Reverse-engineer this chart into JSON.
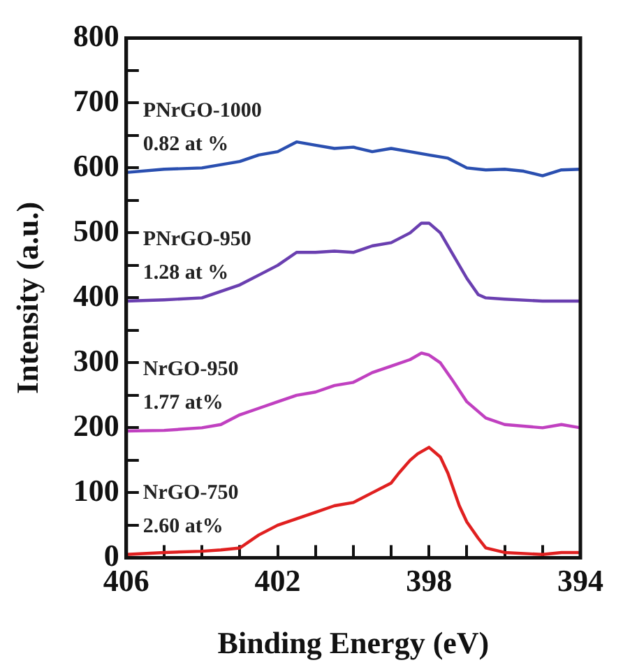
{
  "chart_data": {
    "type": "line",
    "xlabel": "Binding Energy (eV)",
    "ylabel": "Intensity (a.u.)",
    "xlim": [
      406,
      394
    ],
    "xticks": [
      406,
      {
        "value": 405,
        "label": null
      },
      {
        "value": 404,
        "label": null
      },
      {
        "value": 403,
        "label": null
      },
      402,
      {
        "value": 401,
        "label": null
      },
      {
        "value": 400,
        "label": null
      },
      {
        "value": 399,
        "label": null
      },
      398,
      {
        "value": 397,
        "label": null
      },
      {
        "value": 396,
        "label": null
      },
      {
        "value": 395,
        "label": null
      },
      394
    ],
    "ylim": [
      0,
      800
    ],
    "yticks": [
      0,
      {
        "value": 50,
        "label": null
      },
      100,
      {
        "value": 150,
        "label": null
      },
      200,
      {
        "value": 250,
        "label": null
      },
      300,
      {
        "value": 350,
        "label": null
      },
      400,
      {
        "value": 450,
        "label": null
      },
      500,
      {
        "value": 550,
        "label": null
      },
      600,
      {
        "value": 650,
        "label": null
      },
      700,
      {
        "value": 750,
        "label": null
      },
      800
    ],
    "grid": false,
    "legend": false,
    "marker": "none",
    "line_style": "solid",
    "annotations": [
      "0.82 at %",
      "1.28 at %",
      "1.77 at%",
      "2.60 at%"
    ],
    "series": [
      {
        "name": "PNrGO-1000",
        "color": "#2a4fb0",
        "x": [
          406,
          405,
          404,
          403,
          402.5,
          402,
          401.5,
          401,
          400.5,
          400,
          399.5,
          399,
          398.5,
          398,
          397.5,
          397,
          396.5,
          396,
          395.5,
          395,
          394.5,
          394
        ],
        "values": [
          593,
          598,
          600,
          610,
          620,
          625,
          640,
          635,
          630,
          632,
          625,
          630,
          625,
          620,
          615,
          600,
          597,
          598,
          595,
          588,
          597,
          598
        ]
      },
      {
        "name": "PNrGO-950",
        "color": "#6a3fb0",
        "x": [
          406,
          405,
          404,
          403.5,
          403,
          402.5,
          402,
          401.5,
          401,
          400.5,
          400,
          399.5,
          399,
          398.5,
          398.2,
          398,
          397.7,
          397.4,
          397,
          396.7,
          396.5,
          396,
          395,
          394
        ],
        "values": [
          395,
          397,
          400,
          410,
          420,
          435,
          450,
          470,
          470,
          472,
          470,
          480,
          485,
          500,
          515,
          515,
          500,
          470,
          430,
          405,
          400,
          398,
          395,
          395
        ]
      },
      {
        "name": "NrGO-950",
        "color": "#c040c0",
        "x": [
          406,
          405,
          404,
          403.5,
          403,
          402.5,
          402,
          401.5,
          401,
          400.5,
          400,
          399.5,
          399,
          398.5,
          398.2,
          398,
          397.7,
          397.4,
          397,
          396.5,
          396,
          395,
          394.5,
          394
        ],
        "values": [
          195,
          196,
          200,
          205,
          220,
          230,
          240,
          250,
          255,
          265,
          270,
          285,
          295,
          305,
          315,
          312,
          300,
          275,
          240,
          215,
          205,
          200,
          205,
          200
        ]
      },
      {
        "name": "NrGO-750",
        "color": "#e02020",
        "x": [
          406,
          405,
          404,
          403.5,
          403,
          402.5,
          402,
          401.5,
          401,
          400.5,
          400,
          399.5,
          399,
          398.8,
          398.5,
          398.3,
          398,
          397.7,
          397.5,
          397.2,
          397,
          396.7,
          396.5,
          396,
          395,
          394.5,
          394
        ],
        "values": [
          5,
          8,
          10,
          12,
          15,
          35,
          50,
          60,
          70,
          80,
          85,
          100,
          115,
          130,
          150,
          160,
          170,
          155,
          130,
          80,
          55,
          30,
          15,
          8,
          5,
          8,
          8
        ]
      }
    ]
  }
}
